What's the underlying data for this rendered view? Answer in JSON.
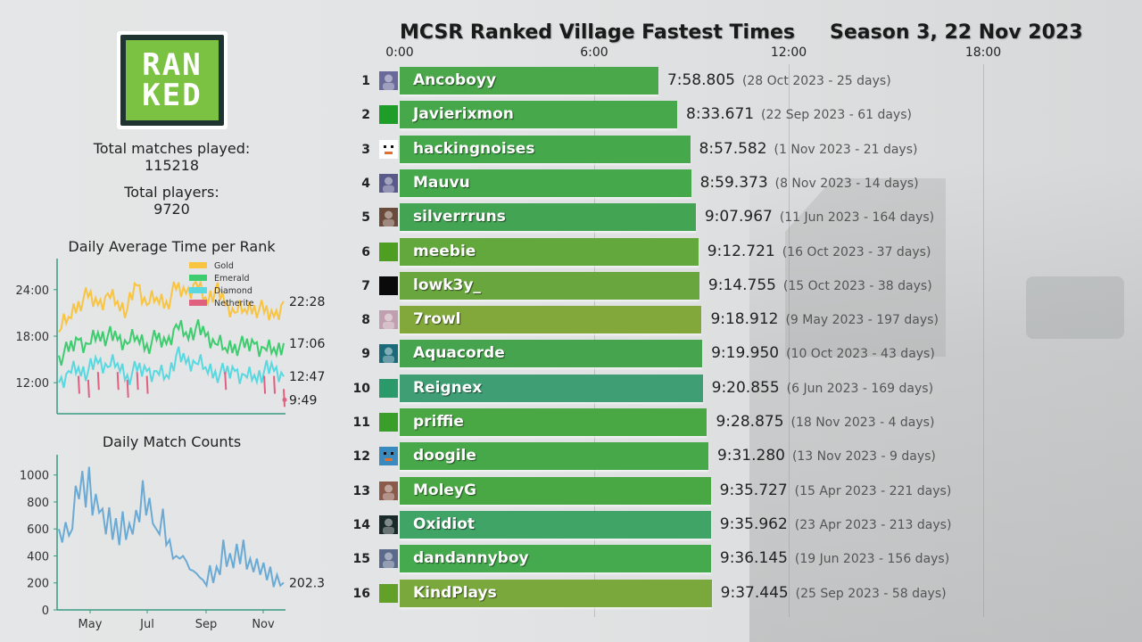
{
  "header": {
    "title": "MCSR Ranked Village Fastest Times",
    "season": "Season 3, 22 Nov 2023"
  },
  "logo": {
    "line1": "RAN",
    "line2": "KED"
  },
  "stats": {
    "matches_label": "Total matches played:",
    "matches_value": "115218",
    "players_label": "Total players:",
    "players_value": "9720"
  },
  "colors": {
    "gold": "#f9c440",
    "emerald": "#3dcc6e",
    "diamond": "#5ad8e0",
    "netherite": "#e06080",
    "match_line": "#6aaad4",
    "axis": "#3a9a80"
  },
  "chart_data": [
    {
      "type": "bar",
      "title": "MCSR Ranked Village Fastest Times",
      "subtitle": "Season 3, 22 Nov 2023",
      "orientation": "horizontal",
      "x_ticks": [
        "0:00",
        "6:00",
        "12:00",
        "18:00"
      ],
      "xlim_seconds": [
        0,
        1440
      ],
      "grid": true,
      "categories": [
        "Ancoboyy",
        "Javierixmon",
        "hackingnoises",
        "Mauvu",
        "silverrruns",
        "meebie",
        "lowk3y_",
        "7rowl",
        "Aquacorde",
        "Reignex",
        "priffie",
        "doogile",
        "MoleyG",
        "Oxidiot",
        "dandannyboy",
        "KindPlays"
      ],
      "rows": [
        {
          "rank": "1",
          "name": "Ancoboyy",
          "time": "7:58.805",
          "seconds": 478.805,
          "date": "(28 Oct 2023 - 25 days)",
          "bar_color": "#4aa84a",
          "avatar": "#6a6a9a",
          "avatar_icon": "portrait"
        },
        {
          "rank": "2",
          "name": "Javierixmon",
          "time": "8:33.671",
          "seconds": 513.671,
          "date": "(22 Sep 2023 - 61 days)",
          "bar_color": "#46a84a",
          "avatar": "#1e9e28",
          "avatar_icon": "solid"
        },
        {
          "rank": "3",
          "name": "hackingnoises",
          "time": "8:57.582",
          "seconds": 537.582,
          "date": "(1 Nov 2023 - 21 days)",
          "bar_color": "#45a94c",
          "avatar": "#ffffff",
          "avatar_icon": "face"
        },
        {
          "rank": "4",
          "name": "Mauvu",
          "time": "8:59.373",
          "seconds": 539.373,
          "date": "(8 Nov 2023 - 14 days)",
          "bar_color": "#45a94c",
          "avatar": "#5a5a8a",
          "avatar_icon": "portrait"
        },
        {
          "rank": "5",
          "name": "silverrruns",
          "time": "9:07.967",
          "seconds": 547.967,
          "date": "(11 Jun 2023 - 164 days)",
          "bar_color": "#43a453",
          "avatar": "#6a4a3a",
          "avatar_icon": "portrait"
        },
        {
          "rank": "6",
          "name": "meebie",
          "time": "9:12.721",
          "seconds": 552.721,
          "date": "(16 Oct 2023 - 37 days)",
          "bar_color": "#62a83c",
          "avatar": "#4e9e22",
          "avatar_icon": "solid"
        },
        {
          "rank": "7",
          "name": "lowk3y_",
          "time": "9:14.755",
          "seconds": 554.755,
          "date": "(15 Oct 2023 - 38 days)",
          "bar_color": "#6aa63e",
          "avatar": "#0a0a0a",
          "avatar_icon": "solid"
        },
        {
          "rank": "8",
          "name": "7rowl",
          "time": "9:18.912",
          "seconds": 558.912,
          "date": "(9 May 2023 - 197 days)",
          "bar_color": "#82a83c",
          "avatar": "#c0a0b0",
          "avatar_icon": "portrait"
        },
        {
          "rank": "9",
          "name": "Aquacorde",
          "time": "9:19.950",
          "seconds": 559.95,
          "date": "(10 Oct 2023 - 43 days)",
          "bar_color": "#46a44e",
          "avatar": "#1a6a7a",
          "avatar_icon": "portrait"
        },
        {
          "rank": "10",
          "name": "Reignex",
          "time": "9:20.855",
          "seconds": 560.855,
          "date": "(6 Jun 2023 - 169 days)",
          "bar_color": "#3f9e74",
          "avatar": "#2a9a6a",
          "avatar_icon": "solid"
        },
        {
          "rank": "11",
          "name": "priffie",
          "time": "9:28.875",
          "seconds": 568.875,
          "date": "(18 Nov 2023 - 4 days)",
          "bar_color": "#4aa844",
          "avatar": "#3a9e2a",
          "avatar_icon": "solid"
        },
        {
          "rank": "12",
          "name": "doogile",
          "time": "9:31.280",
          "seconds": 571.28,
          "date": "(13 Nov 2023 - 9 days)",
          "bar_color": "#46a848",
          "avatar": "#3a8ac0",
          "avatar_icon": "face"
        },
        {
          "rank": "13",
          "name": "MoleyG",
          "time": "9:35.727",
          "seconds": 575.727,
          "date": "(15 Apr 2023 - 221 days)",
          "bar_color": "#4aa844",
          "avatar": "#8a5a4a",
          "avatar_icon": "portrait"
        },
        {
          "rank": "14",
          "name": "Oxidiot",
          "time": "9:35.962",
          "seconds": 575.962,
          "date": "(23 Apr 2023 - 213 days)",
          "bar_color": "#40a466",
          "avatar": "#1a2a2a",
          "avatar_icon": "portrait"
        },
        {
          "rank": "15",
          "name": "dandannyboy",
          "time": "9:36.145",
          "seconds": 576.145,
          "date": "(19 Jun 2023 - 156 days)",
          "bar_color": "#45a94e",
          "avatar": "#5a6a8a",
          "avatar_icon": "portrait"
        },
        {
          "rank": "16",
          "name": "KindPlays",
          "time": "9:37.445",
          "seconds": 577.445,
          "date": "(25 Sep 2023 - 58 days)",
          "bar_color": "#7aa83c",
          "avatar": "#62a028",
          "avatar_icon": "solid"
        }
      ]
    },
    {
      "type": "line",
      "title": "Daily Average Time per Rank",
      "y_ticks": [
        "12:00",
        "18:00",
        "24:00"
      ],
      "ylim_minutes": [
        8,
        28
      ],
      "legend": [
        "Gold",
        "Emerald",
        "Diamond",
        "Netherite"
      ],
      "legend_position": "upper right",
      "end_labels": [
        "22:28",
        "17:06",
        "12:47",
        "9:49"
      ],
      "series": [
        {
          "name": "Gold",
          "values": [
            18.5,
            20.5,
            22.5,
            23.0,
            22.0,
            23.5,
            22.5,
            21.5,
            24.5,
            22.0,
            23.0,
            22.5,
            24.0,
            23.5,
            25.0,
            23.0,
            24.0,
            22.0,
            21.0,
            21.5,
            22.0,
            21.0,
            20.5,
            22.5
          ]
        },
        {
          "name": "Emerald",
          "values": [
            15.5,
            16.0,
            17.5,
            17.0,
            18.5,
            18.0,
            17.5,
            17.0,
            18.0,
            17.0,
            17.5,
            17.0,
            19.5,
            18.5,
            19.0,
            18.0,
            17.0,
            16.5,
            17.0,
            16.5,
            17.0,
            16.5,
            16.5,
            17.1
          ]
        },
        {
          "name": "Diamond",
          "values": [
            12.0,
            13.5,
            14.0,
            13.5,
            14.5,
            14.0,
            14.5,
            13.0,
            13.5,
            13.5,
            13.5,
            13.0,
            15.5,
            14.5,
            14.5,
            14.0,
            13.5,
            13.0,
            13.5,
            13.0,
            13.0,
            13.5,
            13.5,
            12.8
          ]
        },
        {
          "name": "Netherite",
          "values": [
            null,
            null,
            11.5,
            11.0,
            12.0,
            null,
            12.0,
            11.0,
            12.0,
            11.5,
            null,
            null,
            null,
            null,
            null,
            null,
            null,
            12.0,
            null,
            null,
            null,
            11.5,
            11.5,
            9.8
          ]
        }
      ]
    },
    {
      "type": "line",
      "title": "Daily Match Counts",
      "y_ticks": [
        "0",
        "200",
        "400",
        "600",
        "800",
        "1000"
      ],
      "ylim": [
        0,
        1150
      ],
      "x_ticks": [
        "May",
        "Jul",
        "Sep",
        "Nov"
      ],
      "end_label": "202.3",
      "series": [
        {
          "name": "Matches",
          "values": [
            600,
            500,
            650,
            550,
            600,
            920,
            820,
            1030,
            760,
            1060,
            700,
            860,
            720,
            750,
            560,
            760,
            520,
            680,
            480,
            730,
            520,
            640,
            560,
            740,
            650,
            960,
            700,
            830,
            640,
            600,
            560,
            750,
            480,
            520,
            380,
            400,
            380,
            400,
            360,
            300,
            290,
            270,
            240,
            220,
            180,
            330,
            200,
            320,
            260,
            520,
            320,
            420,
            310,
            490,
            340,
            520,
            300,
            380,
            280,
            380,
            260,
            350,
            220,
            320,
            170,
            260,
            180,
            202
          ]
        }
      ]
    }
  ]
}
